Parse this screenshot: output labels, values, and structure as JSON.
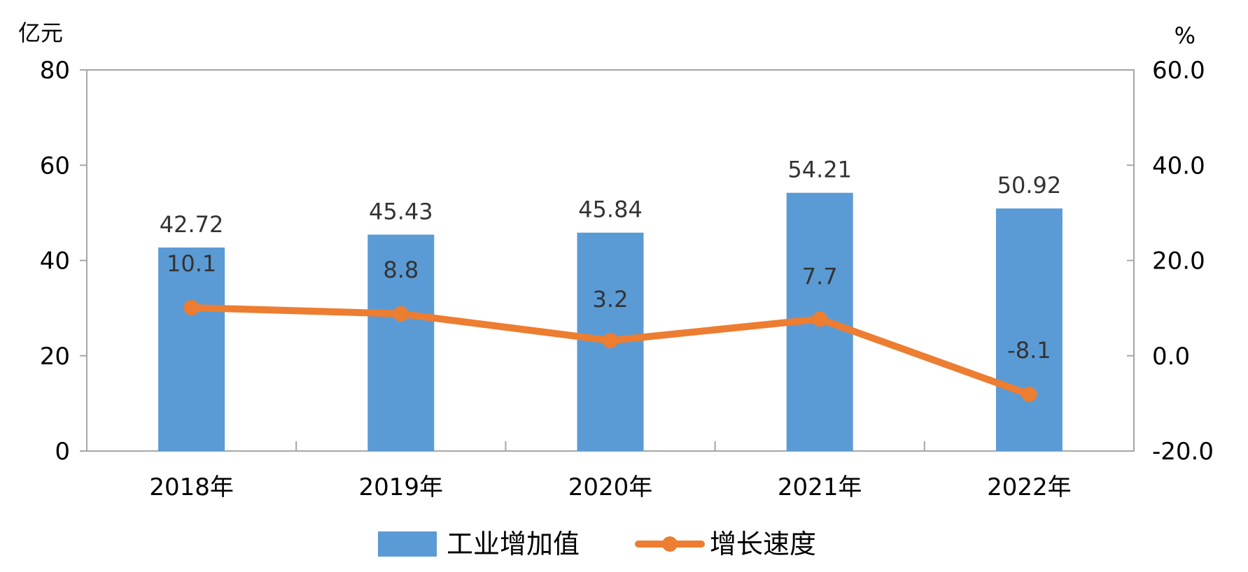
{
  "chart_data": {
    "type": "bar+line",
    "title": "",
    "categories": [
      "2018年",
      "2019年",
      "2020年",
      "2021年",
      "2022年"
    ],
    "series": [
      {
        "name": "工业增加值",
        "type": "bar",
        "axis": "left",
        "values": [
          42.72,
          45.43,
          45.84,
          54.21,
          50.92
        ],
        "color": "#5B9BD5"
      },
      {
        "name": "增长速度",
        "type": "line",
        "axis": "right",
        "values": [
          10.1,
          8.8,
          3.2,
          7.7,
          -8.1
        ],
        "color": "#ED7D31"
      }
    ],
    "left_axis": {
      "unit": "亿元",
      "min": 0,
      "max": 80,
      "ticks": [
        "0",
        "20",
        "40",
        "60",
        "80"
      ]
    },
    "right_axis": {
      "unit": "%",
      "min": -20,
      "max": 60,
      "ticks": [
        "-20.0",
        "0.0",
        "20.0",
        "40.0",
        "60.0"
      ]
    },
    "bar_labels": [
      "42.72",
      "45.43",
      "45.84",
      "54.21",
      "50.92"
    ],
    "line_labels": [
      "10.1",
      "8.8",
      "3.2",
      "7.7",
      "-8.1"
    ],
    "negative_color": "#FF0000",
    "legend": {
      "placement": "bottom"
    },
    "grid": false
  }
}
